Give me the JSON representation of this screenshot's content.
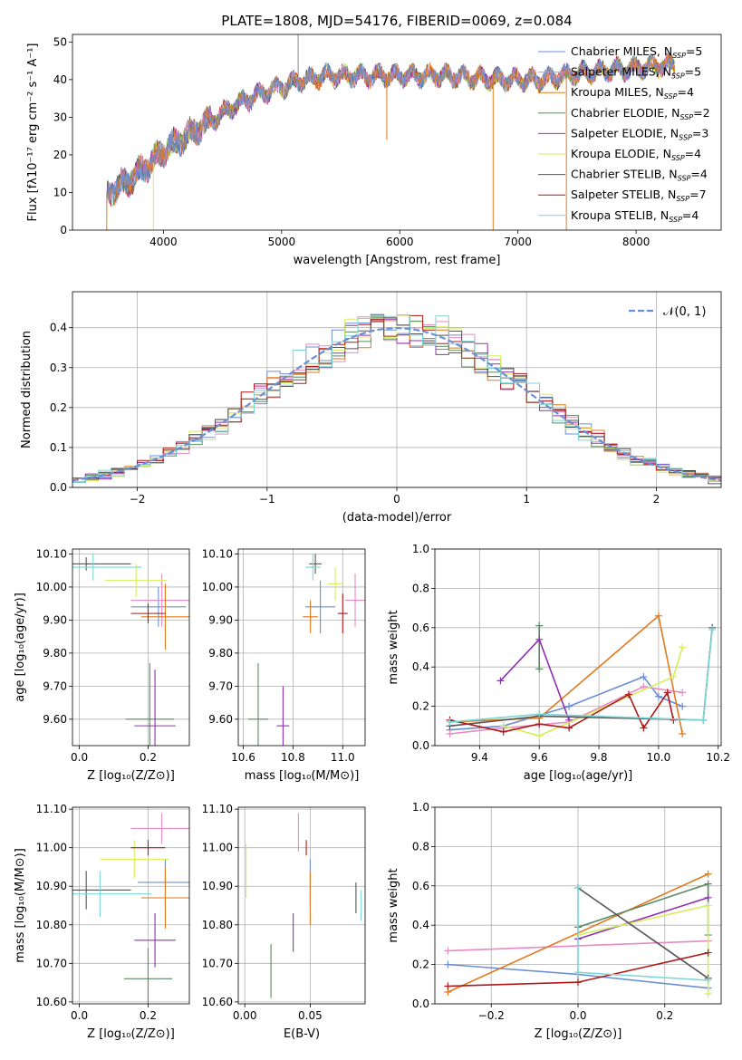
{
  "palette": {
    "Chabrier MILES": "#6b8fd6",
    "Salpeter MILES": "#e88ac3",
    "Kroupa MILES": "#e07a1f",
    "Chabrier ELODIE": "#5a8a60",
    "Salpeter ELODIE": "#9030b0",
    "Kroupa ELODIE": "#d6ee5a",
    "Chabrier STELIB": "#555555",
    "Salpeter STELIB": "#b01818",
    "Kroupa STELIB": "#7ad6d6",
    "normal": "#6b8fd6",
    "grid": "#b0b0b0"
  },
  "chart_data": [
    {
      "id": "spectrum",
      "type": "line",
      "title": "PLATE=1808, MJD=54176, FIBERID=0069, z=0.084",
      "xlabel": "wavelength [Angstrom, rest frame]",
      "ylabel": "Flux [fλ10⁻¹⁷ erg cm⁻² s⁻¹ A⁻¹]",
      "xlim": [
        3230,
        8720
      ],
      "ylim": [
        0,
        52
      ],
      "xticks": [
        4000,
        5000,
        6000,
        7000,
        8000
      ],
      "yticks": [
        0,
        10,
        20,
        30,
        40,
        50
      ],
      "grid": false,
      "legend_position": "top-right",
      "series": [
        {
          "name": "Chabrier MILES, N",
          "sub": "SSP",
          "suffix": "=5"
        },
        {
          "name": "Salpeter MILES, N",
          "sub": "SSP",
          "suffix": "=5"
        },
        {
          "name": "Kroupa MILES, N",
          "sub": "SSP",
          "suffix": "=4"
        },
        {
          "name": "Chabrier ELODIE, N",
          "sub": "SSP",
          "suffix": "=2"
        },
        {
          "name": "Salpeter ELODIE, N",
          "sub": "SSP",
          "suffix": "=3"
        },
        {
          "name": "Kroupa ELODIE, N",
          "sub": "SSP",
          "suffix": "=4"
        },
        {
          "name": "Chabrier STELIB, N",
          "sub": "SSP",
          "suffix": "=4"
        },
        {
          "name": "Salpeter STELIB, N",
          "sub": "SSP",
          "suffix": "=7"
        },
        {
          "name": "Kroupa STELIB, N",
          "sub": "SSP",
          "suffix": "=4"
        }
      ],
      "continuum": [
        [
          3520,
          10
        ],
        [
          3700,
          13
        ],
        [
          3900,
          18
        ],
        [
          4000,
          21
        ],
        [
          4200,
          25
        ],
        [
          4400,
          29
        ],
        [
          4600,
          33
        ],
        [
          4800,
          36
        ],
        [
          5000,
          38
        ],
        [
          5200,
          40
        ],
        [
          5400,
          41
        ],
        [
          5700,
          41
        ],
        [
          6000,
          41
        ],
        [
          6400,
          41
        ],
        [
          6800,
          40
        ],
        [
          7200,
          40
        ],
        [
          7600,
          42
        ],
        [
          8000,
          43
        ],
        [
          8300,
          44
        ]
      ],
      "features": [
        {
          "x": 5140,
          "y": 52,
          "label": "spike"
        },
        {
          "x": 5890,
          "y": 24,
          "label": "dip"
        },
        {
          "x": 6790,
          "y": 0,
          "label": "dip"
        },
        {
          "x": 7410,
          "y": 0,
          "label": "dip"
        }
      ]
    },
    {
      "id": "residuals",
      "type": "histogram",
      "xlabel": "(data-model)/error",
      "ylabel": "Normed distribution",
      "xlim": [
        -2.5,
        2.5
      ],
      "ylim": [
        0,
        0.49
      ],
      "xticks": [
        -2,
        -1,
        0,
        1,
        2
      ],
      "yticks": [
        0.0,
        0.1,
        0.2,
        0.3,
        0.4
      ],
      "grid": true,
      "bin_width": 0.1,
      "legend_position": "top-right",
      "legend": "𝒩(0, 1)",
      "normal_curve": {
        "mu": 0,
        "sigma": 1
      }
    },
    {
      "id": "age-vs-Z",
      "type": "scatter",
      "xlabel": "Z [log₁₀(Z/Z⊙)]",
      "ylabel": "age  [log₁₀(age/yr)]",
      "xlim": [
        -0.02,
        0.32
      ],
      "ylim": [
        9.52,
        10.115
      ],
      "xticks": [
        0.0,
        0.2
      ],
      "yticks": [
        9.6,
        9.7,
        9.8,
        9.9,
        10.0,
        10.1
      ],
      "grid": true,
      "points": [
        {
          "model": "Chabrier MILES",
          "x": 0.23,
          "y": 9.94,
          "xerr": 0.08,
          "yerr": 0.06
        },
        {
          "model": "Salpeter MILES",
          "x": 0.24,
          "y": 9.96,
          "xerr": 0.09,
          "yerr": 0.08
        },
        {
          "model": "Kroupa MILES",
          "x": 0.25,
          "y": 9.91,
          "xerr": 0.07,
          "yerr": 0.1
        },
        {
          "model": "Chabrier ELODIE",
          "x": 0.205,
          "y": 9.6,
          "xerr": 0.07,
          "yerr": 0.17
        },
        {
          "model": "Salpeter ELODIE",
          "x": 0.22,
          "y": 9.58,
          "xerr": 0.06,
          "yerr": 0.17
        },
        {
          "model": "Kroupa ELODIE",
          "x": 0.165,
          "y": 10.02,
          "xerr": 0.09,
          "yerr": 0.05
        },
        {
          "model": "Chabrier STELIB",
          "x": 0.02,
          "y": 10.07,
          "xerr": 0.13,
          "yerr": 0.02
        },
        {
          "model": "Salpeter STELIB",
          "x": 0.2,
          "y": 9.92,
          "xerr": 0.05,
          "yerr": 0.03
        },
        {
          "model": "Kroupa STELIB",
          "x": 0.04,
          "y": 10.06,
          "xerr": 0.14,
          "yerr": 0.04
        }
      ]
    },
    {
      "id": "age-vs-mass",
      "type": "scatter",
      "xlabel": "mass [log₁₀(M/M⊙)]",
      "xlim": [
        10.58,
        11.09
      ],
      "ylim": [
        9.52,
        10.115
      ],
      "xticks": [
        10.6,
        10.8,
        11.0
      ],
      "yticks": [
        9.6,
        9.7,
        9.8,
        9.9,
        10.0,
        10.1
      ],
      "grid": true,
      "points": [
        {
          "model": "Chabrier MILES",
          "x": 10.91,
          "y": 9.94,
          "xerr": 0.06,
          "yerr": 0.08
        },
        {
          "model": "Salpeter MILES",
          "x": 11.05,
          "y": 9.96,
          "xerr": 0.04,
          "yerr": 0.08
        },
        {
          "model": "Kroupa MILES",
          "x": 10.87,
          "y": 9.91,
          "xerr": 0.03,
          "yerr": 0.05
        },
        {
          "model": "Chabrier ELODIE",
          "x": 10.66,
          "y": 9.6,
          "xerr": 0.04,
          "yerr": 0.17
        },
        {
          "model": "Salpeter ELODIE",
          "x": 10.76,
          "y": 9.58,
          "xerr": 0.025,
          "yerr": 0.12
        },
        {
          "model": "Kroupa ELODIE",
          "x": 10.97,
          "y": 10.01,
          "xerr": 0.03,
          "yerr": 0.05
        },
        {
          "model": "Chabrier STELIB",
          "x": 10.89,
          "y": 10.07,
          "xerr": 0.025,
          "yerr": 0.03
        },
        {
          "model": "Salpeter STELIB",
          "x": 11.0,
          "y": 9.92,
          "xerr": 0.02,
          "yerr": 0.06
        },
        {
          "model": "Kroupa STELIB",
          "x": 10.88,
          "y": 10.06,
          "xerr": 0.03,
          "yerr": 0.04
        }
      ]
    },
    {
      "id": "weight-vs-age",
      "type": "line",
      "xlabel": "age  [log₁₀(age/yr)]",
      "ylabel": "mass weight",
      "xlim": [
        9.25,
        10.21
      ],
      "ylim": [
        0,
        1
      ],
      "xticks": [
        9.4,
        9.6,
        9.8,
        10.0,
        10.2
      ],
      "yticks": [
        0.0,
        0.2,
        0.4,
        0.6,
        0.8,
        1.0
      ],
      "grid": true,
      "series": [
        {
          "model": "Chabrier MILES",
          "x": [
            9.3,
            9.48,
            9.7,
            9.95,
            10.0,
            10.08
          ],
          "y": [
            0.08,
            0.1,
            0.2,
            0.35,
            0.25,
            0.2
          ]
        },
        {
          "model": "Salpeter MILES",
          "x": [
            9.3,
            9.48,
            9.7,
            9.95,
            10.08
          ],
          "y": [
            0.06,
            0.09,
            0.12,
            0.3,
            0.27
          ]
        },
        {
          "model": "Kroupa MILES",
          "x": [
            9.3,
            9.6,
            10.0,
            10.08
          ],
          "y": [
            0.12,
            0.14,
            0.66,
            0.06
          ]
        },
        {
          "model": "Chabrier ELODIE",
          "x": [
            9.6,
            9.6
          ],
          "y": [
            0.61,
            0.39
          ]
        },
        {
          "model": "Salpeter ELODIE",
          "x": [
            9.47,
            9.6,
            9.7
          ],
          "y": [
            0.33,
            0.54,
            0.13
          ]
        },
        {
          "model": "Kroupa ELODIE",
          "x": [
            9.48,
            9.6,
            10.05,
            10.08
          ],
          "y": [
            0.1,
            0.05,
            0.35,
            0.5
          ]
        },
        {
          "model": "Chabrier STELIB",
          "x": [
            9.3,
            9.6,
            10.15,
            10.18
          ],
          "y": [
            0.1,
            0.15,
            0.13,
            0.6
          ]
        },
        {
          "model": "Salpeter STELIB",
          "x": [
            9.3,
            9.48,
            9.6,
            9.7,
            9.9,
            9.95,
            10.03,
            10.05
          ],
          "y": [
            0.13,
            0.07,
            0.11,
            0.09,
            0.26,
            0.09,
            0.27,
            0.13
          ]
        },
        {
          "model": "Kroupa STELIB",
          "x": [
            9.3,
            9.6,
            10.15,
            10.18
          ],
          "y": [
            0.12,
            0.16,
            0.13,
            0.59
          ]
        }
      ]
    },
    {
      "id": "mass-vs-Z",
      "type": "scatter",
      "xlabel": "Z [log₁₀(Z/Z⊙)]",
      "ylabel": "mass [log₁₀(M/M⊙)]",
      "xlim": [
        -0.02,
        0.32
      ],
      "ylim": [
        10.595,
        11.105
      ],
      "xticks": [
        0.0,
        0.2
      ],
      "yticks": [
        10.6,
        10.7,
        10.8,
        10.9,
        11.0,
        11.1
      ],
      "grid": true,
      "points": [
        {
          "model": "Chabrier MILES",
          "x": 0.25,
          "y": 10.91,
          "xerr": 0.08,
          "yerr": 0.06
        },
        {
          "model": "Salpeter MILES",
          "x": 0.24,
          "y": 11.05,
          "xerr": 0.09,
          "yerr": 0.04
        },
        {
          "model": "Kroupa MILES",
          "x": 0.25,
          "y": 10.87,
          "xerr": 0.07,
          "yerr": 0.08
        },
        {
          "model": "Chabrier ELODIE",
          "x": 0.2,
          "y": 10.66,
          "xerr": 0.07,
          "yerr": 0.08
        },
        {
          "model": "Salpeter ELODIE",
          "x": 0.22,
          "y": 10.76,
          "xerr": 0.06,
          "yerr": 0.07
        },
        {
          "model": "Kroupa ELODIE",
          "x": 0.16,
          "y": 10.97,
          "xerr": 0.1,
          "yerr": 0.05
        },
        {
          "model": "Chabrier STELIB",
          "x": 0.02,
          "y": 10.89,
          "xerr": 0.13,
          "yerr": 0.05
        },
        {
          "model": "Salpeter STELIB",
          "x": 0.2,
          "y": 11.0,
          "xerr": 0.05,
          "yerr": 0.02
        },
        {
          "model": "Kroupa STELIB",
          "x": 0.06,
          "y": 10.88,
          "xerr": 0.15,
          "yerr": 0.06
        }
      ]
    },
    {
      "id": "mass-vs-ebv",
      "type": "scatter",
      "xlabel": "E(B-V)",
      "xlim": [
        -0.005,
        0.092
      ],
      "ylim": [
        10.595,
        11.105
      ],
      "xticks": [
        0.0,
        0.05
      ],
      "yticks": [
        10.6,
        10.7,
        10.8,
        10.9,
        11.0,
        11.1
      ],
      "grid": true,
      "points": [
        {
          "model": "Chabrier MILES",
          "x": 0.05,
          "y": 10.91,
          "xerr": 0,
          "yerr": 0.06
        },
        {
          "model": "Salpeter MILES",
          "x": 0.041,
          "y": 11.04,
          "xerr": 0,
          "yerr": 0.05
        },
        {
          "model": "Kroupa MILES",
          "x": 0.05,
          "y": 10.87,
          "xerr": 0,
          "yerr": 0.07
        },
        {
          "model": "Chabrier ELODIE",
          "x": 0.02,
          "y": 10.68,
          "xerr": 0,
          "yerr": 0.07
        },
        {
          "model": "Salpeter ELODIE",
          "x": 0.037,
          "y": 10.78,
          "xerr": 0,
          "yerr": 0.05
        },
        {
          "model": "Kroupa ELODIE",
          "x": 0.001,
          "y": 10.94,
          "xerr": 0,
          "yerr": 0.07
        },
        {
          "model": "Chabrier STELIB",
          "x": 0.085,
          "y": 10.87,
          "xerr": 0,
          "yerr": 0.04
        },
        {
          "model": "Salpeter STELIB",
          "x": 0.047,
          "y": 11.0,
          "xerr": 0,
          "yerr": 0.02
        },
        {
          "model": "Kroupa STELIB",
          "x": 0.089,
          "y": 10.85,
          "xerr": 0,
          "yerr": 0.04
        }
      ]
    },
    {
      "id": "weight-vs-Z",
      "type": "line",
      "xlabel": "Z [log₁₀(Z/Z⊙)]",
      "ylabel": "mass weight",
      "xlim": [
        -0.33,
        0.33
      ],
      "ylim": [
        0,
        1
      ],
      "xticks": [
        -0.2,
        0.0,
        0.2
      ],
      "yticks": [
        0.0,
        0.2,
        0.4,
        0.6,
        0.8,
        1.0
      ],
      "grid": true,
      "series": [
        {
          "model": "Chabrier MILES",
          "x": [
            -0.3,
            0.0,
            0.3
          ],
          "y": [
            0.2,
            0.15,
            0.08
          ]
        },
        {
          "model": "Salpeter MILES",
          "x": [
            -0.3,
            0.3
          ],
          "y": [
            0.27,
            0.32
          ]
        },
        {
          "model": "Kroupa MILES",
          "x": [
            -0.3,
            0.3
          ],
          "y": [
            0.06,
            0.66
          ]
        },
        {
          "model": "Chabrier ELODIE",
          "x": [
            0.0,
            0.3,
            0.3
          ],
          "y": [
            0.39,
            0.61,
            0.35
          ]
        },
        {
          "model": "Salpeter ELODIE",
          "x": [
            0.0,
            0.3
          ],
          "y": [
            0.33,
            0.54
          ]
        },
        {
          "model": "Kroupa ELODIE",
          "x": [
            0.0,
            0.3,
            0.3
          ],
          "y": [
            0.35,
            0.5,
            0.05
          ]
        },
        {
          "model": "Chabrier STELIB",
          "x": [
            0.0,
            0.3
          ],
          "y": [
            0.59,
            0.13
          ]
        },
        {
          "model": "Salpeter STELIB",
          "x": [
            -0.3,
            0.0,
            0.3
          ],
          "y": [
            0.09,
            0.11,
            0.26
          ]
        },
        {
          "model": "Kroupa STELIB",
          "x": [
            0.0,
            0.0,
            0.3
          ],
          "y": [
            0.59,
            0.16,
            0.12
          ]
        }
      ]
    }
  ]
}
